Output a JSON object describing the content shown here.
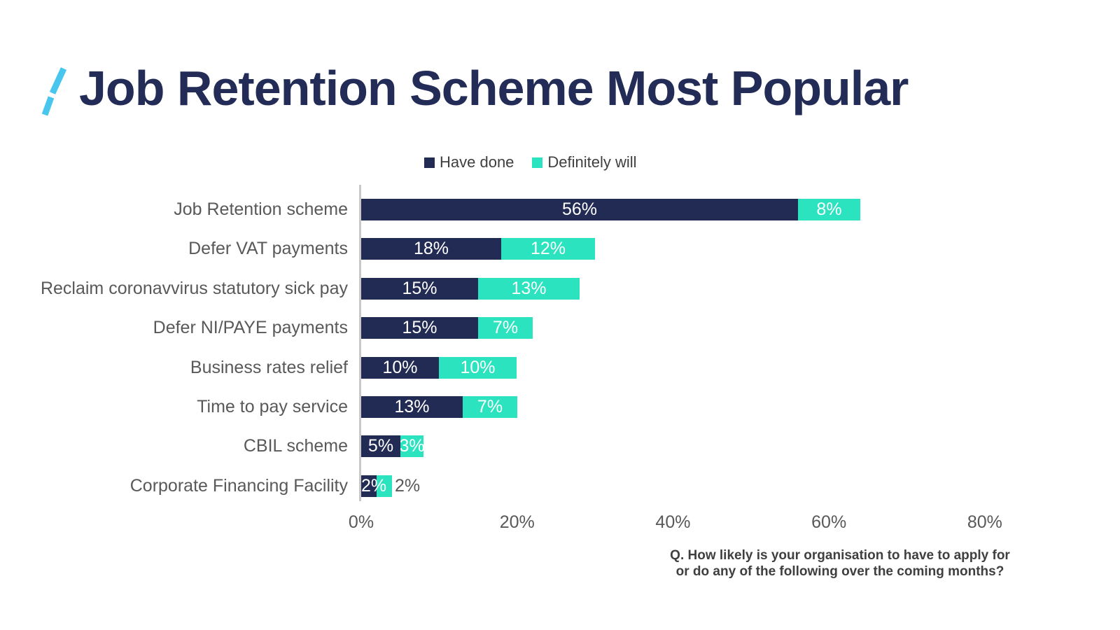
{
  "title": "Job Retention Scheme Most Popular",
  "colors": {
    "have_done": "#222B53",
    "definitely_will": "#2BE3BF",
    "title_navy": "#232C56",
    "label_gray": "#595959",
    "legend_text": "#3F3F3F",
    "axis_line": "#C8C8C8",
    "slash_blue": "#48C6EE"
  },
  "icons": {
    "brand_slash": "slash-icon"
  },
  "legend": [
    {
      "label": "Have done",
      "color": "#222B53"
    },
    {
      "label": "Definitely will",
      "color": "#2BE3BF"
    }
  ],
  "chart_data": {
    "type": "bar",
    "orientation": "horizontal",
    "stacked": true,
    "categories": [
      "Job Retention scheme",
      "Defer VAT payments",
      "Reclaim coronavvirus statutory sick pay",
      "Defer NI/PAYE payments",
      "Business rates relief",
      "Time to pay service",
      "CBIL scheme",
      "Corporate Financing Facility"
    ],
    "series": [
      {
        "name": "Have done",
        "color": "#222B53",
        "values": [
          56,
          18,
          15,
          15,
          10,
          13,
          5,
          2
        ]
      },
      {
        "name": "Definitely will",
        "color": "#2BE3BF",
        "values": [
          8,
          12,
          13,
          7,
          10,
          7,
          3,
          2
        ]
      }
    ],
    "value_label_format": "{v}%",
    "x_axis": {
      "ticks": [
        "0%",
        "20%",
        "40%",
        "60%",
        "80%"
      ],
      "tick_values": [
        0,
        20,
        40,
        60,
        80
      ],
      "min": 0,
      "max": 80,
      "grid": false
    },
    "legend_position": "top-center"
  },
  "footnote": {
    "line1": "Q. How likely is your organisation to have to apply for",
    "line2": "or do any of the following over the coming months?"
  }
}
